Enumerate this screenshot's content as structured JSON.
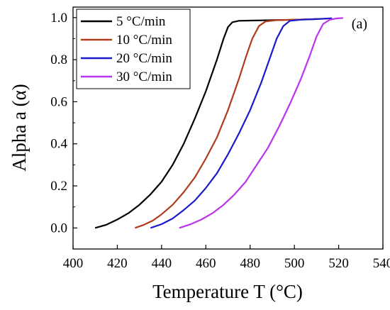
{
  "chart_data": {
    "type": "line",
    "title": "",
    "panel_label": "(a)",
    "xlabel": "Temperature T (°C)",
    "ylabel": "Alpha a (α)",
    "xlim": [
      400,
      540
    ],
    "ylim": [
      -0.1,
      1.05
    ],
    "xticks": [
      400,
      420,
      440,
      460,
      480,
      500,
      520,
      540
    ],
    "yticks": [
      0.0,
      0.2,
      0.4,
      0.6,
      0.8,
      1.0
    ],
    "xtick_labels": [
      "400",
      "420",
      "440",
      "460",
      "480",
      "500",
      "520",
      "540"
    ],
    "ytick_labels": [
      "0.0",
      "0.2",
      "0.4",
      "0.6",
      "0.8",
      "1.0"
    ],
    "grid": false,
    "legend_position": "top-left",
    "series": [
      {
        "name": "5 °C/min",
        "color": "#000000",
        "points": [
          [
            410,
            0.0
          ],
          [
            415,
            0.015
          ],
          [
            420,
            0.04
          ],
          [
            425,
            0.07
          ],
          [
            430,
            0.11
          ],
          [
            435,
            0.16
          ],
          [
            440,
            0.22
          ],
          [
            445,
            0.3
          ],
          [
            450,
            0.4
          ],
          [
            455,
            0.52
          ],
          [
            460,
            0.65
          ],
          [
            465,
            0.8
          ],
          [
            468,
            0.9
          ],
          [
            470,
            0.955
          ],
          [
            472,
            0.978
          ],
          [
            475,
            0.985
          ],
          [
            480,
            0.986
          ],
          [
            490,
            0.988
          ],
          [
            500,
            0.99
          ],
          [
            510,
            0.993
          ]
        ]
      },
      {
        "name": "10 °C/min",
        "color": "#b03a1a",
        "points": [
          [
            428,
            0.0
          ],
          [
            432,
            0.015
          ],
          [
            436,
            0.035
          ],
          [
            440,
            0.065
          ],
          [
            445,
            0.11
          ],
          [
            450,
            0.17
          ],
          [
            455,
            0.24
          ],
          [
            460,
            0.33
          ],
          [
            465,
            0.43
          ],
          [
            470,
            0.56
          ],
          [
            475,
            0.71
          ],
          [
            478,
            0.81
          ],
          [
            481,
            0.9
          ],
          [
            484,
            0.96
          ],
          [
            487,
            0.982
          ],
          [
            492,
            0.988
          ],
          [
            500,
            0.99
          ],
          [
            510,
            0.993
          ],
          [
            515,
            0.995
          ]
        ]
      },
      {
        "name": "20 °C/min",
        "color": "#1a1acc",
        "points": [
          [
            435,
            0.0
          ],
          [
            440,
            0.018
          ],
          [
            445,
            0.045
          ],
          [
            450,
            0.085
          ],
          [
            455,
            0.13
          ],
          [
            460,
            0.19
          ],
          [
            465,
            0.26
          ],
          [
            470,
            0.35
          ],
          [
            475,
            0.45
          ],
          [
            480,
            0.56
          ],
          [
            485,
            0.69
          ],
          [
            489,
            0.81
          ],
          [
            492,
            0.9
          ],
          [
            495,
            0.96
          ],
          [
            498,
            0.985
          ],
          [
            503,
            0.99
          ],
          [
            510,
            0.993
          ],
          [
            517,
            0.997
          ]
        ]
      },
      {
        "name": "30 °C/min",
        "color": "#bb33ee",
        "points": [
          [
            448,
            0.0
          ],
          [
            453,
            0.017
          ],
          [
            458,
            0.04
          ],
          [
            463,
            0.07
          ],
          [
            468,
            0.11
          ],
          [
            473,
            0.16
          ],
          [
            478,
            0.22
          ],
          [
            483,
            0.3
          ],
          [
            488,
            0.38
          ],
          [
            493,
            0.48
          ],
          [
            498,
            0.59
          ],
          [
            503,
            0.71
          ],
          [
            507,
            0.82
          ],
          [
            510,
            0.91
          ],
          [
            513,
            0.97
          ],
          [
            516,
            0.99
          ],
          [
            519,
            0.996
          ],
          [
            522,
            0.998
          ]
        ]
      }
    ]
  }
}
